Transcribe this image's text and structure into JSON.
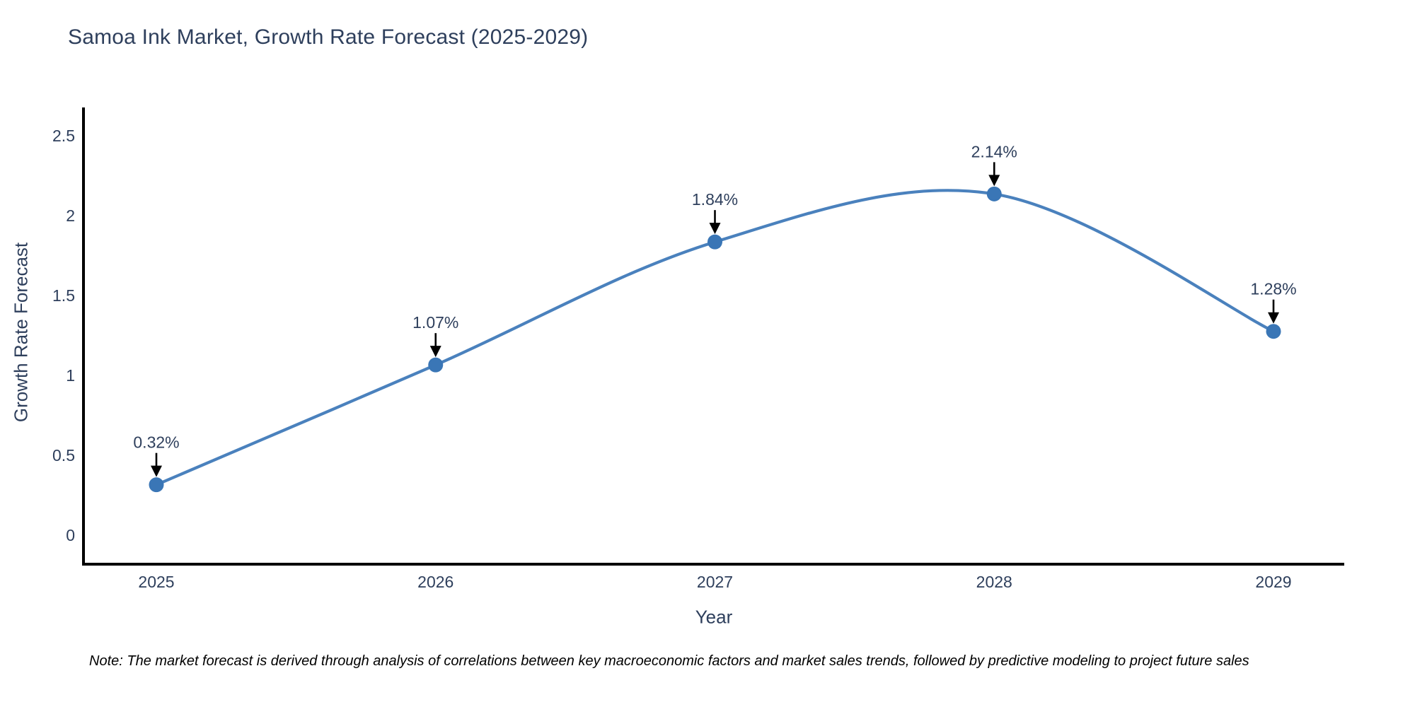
{
  "note": "Note: The market forecast is derived through analysis of correlations between key macroeconomic factors and market sales trends, followed by predictive modeling to project future sales",
  "chart_data": {
    "type": "line",
    "title": "Samoa Ink Market, Growth Rate Forecast (2025-2029)",
    "xlabel": "Year",
    "ylabel": "Growth Rate Forecast",
    "line_shape": "spline",
    "grid": false,
    "legend": "none",
    "x": [
      2025,
      2026,
      2027,
      2028,
      2029
    ],
    "values": [
      0.32,
      1.07,
      1.84,
      2.14,
      1.28
    ],
    "point_labels": [
      "0.32%",
      "1.07%",
      "1.84%",
      "2.14%",
      "1.28%"
    ],
    "xtick_labels": [
      "2025",
      "2026",
      "2027",
      "2028",
      "2029"
    ],
    "yticks": [
      0,
      0.5,
      1,
      1.5,
      2,
      2.5
    ],
    "ytick_labels": [
      "0",
      "0.5",
      "1",
      "1.5",
      "2",
      "2.5"
    ],
    "ylim": [
      0,
      2.5
    ],
    "colors": {
      "line": "#4a81bd",
      "marker": "#3a76b6",
      "axis": "#000000",
      "text": "#2e3f5c",
      "annotation_text": "#2e3f5c",
      "annotation_arrow": "#000000",
      "note_text": "#000000",
      "background": "#ffffff"
    }
  }
}
